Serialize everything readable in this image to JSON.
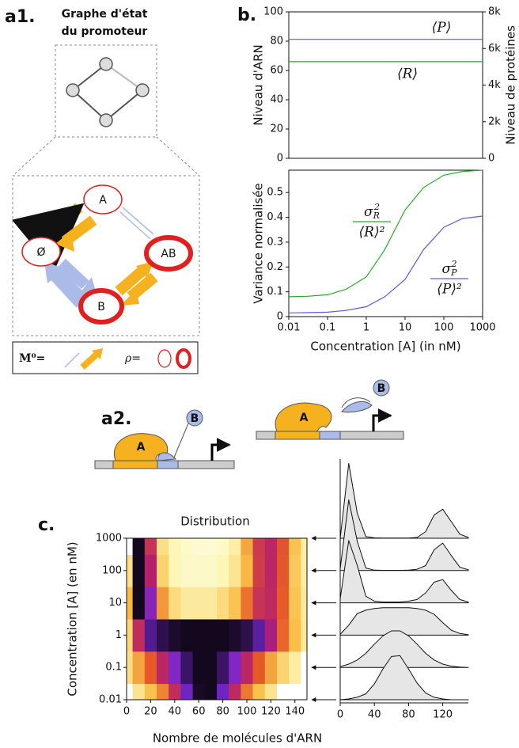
{
  "panel_labels": [
    "a1.",
    "b.",
    "a2.",
    "c."
  ],
  "promoter_graph": {
    "title": [
      "Graphe d'état",
      "du promoteur"
    ],
    "states": [
      "A",
      "Ø",
      "AB",
      "B"
    ],
    "legend": {
      "matrix": "M⁰=",
      "rho": "ρ="
    }
  },
  "binding_diagram": {
    "labels": [
      "A",
      "B",
      "A",
      "B"
    ]
  },
  "chart_data": [
    {
      "type": "line",
      "xscale": "log",
      "xlim": [
        0.01,
        1000
      ],
      "ylim": [
        0,
        100
      ],
      "yticks": [
        0,
        20,
        40,
        60,
        80,
        100
      ],
      "y2lim": [
        0,
        8000
      ],
      "y2ticks": [
        0,
        {
          "value": 2000,
          "label": "2k"
        },
        {
          "value": 4000,
          "label": "4k"
        },
        {
          "value": 6000,
          "label": "6k"
        },
        {
          "value": 8000,
          "label": "8k"
        }
      ],
      "ylabel": "Niveau d'ARN",
      "y2label": "Niveau de protéines",
      "x": [
        0.01,
        1000
      ],
      "series": [
        {
          "name": "⟨P⟩",
          "color": "#5a5ae0",
          "values": [
            6500,
            6500
          ],
          "axis": "y2"
        },
        {
          "name": "⟨R⟩",
          "color": "#2aaa2a",
          "values": [
            66,
            66
          ]
        }
      ]
    },
    {
      "type": "line",
      "xscale": "log",
      "xlim": [
        0.01,
        1000
      ],
      "ylim": [
        0,
        0.59
      ],
      "xticks": [
        0.01,
        0.1,
        1,
        10,
        100,
        1000
      ],
      "yticks": [
        0,
        0.1,
        0.2,
        0.3,
        0.4,
        0.5
      ],
      "xlabel": "Concentration [A] (in nM)",
      "ylabel": "Variance normalisée",
      "x": [
        0.01,
        0.03,
        0.1,
        0.3,
        1,
        3,
        10,
        30,
        100,
        300,
        1000
      ],
      "series": [
        {
          "label": {
            "numerator": "σ",
            "sub": "R",
            "sup": "2",
            "denominator": "⟨R⟩²"
          },
          "color": "#2aaa2a",
          "values": [
            0.08,
            0.082,
            0.088,
            0.11,
            0.16,
            0.27,
            0.43,
            0.52,
            0.57,
            0.585,
            0.59
          ]
        },
        {
          "label": {
            "numerator": "σ",
            "sub": "P",
            "sup": "2",
            "denominator": "⟨P⟩²"
          },
          "color": "#5a5ae0",
          "values": [
            0.015,
            0.016,
            0.018,
            0.025,
            0.04,
            0.08,
            0.15,
            0.27,
            0.36,
            0.395,
            0.405
          ]
        }
      ]
    },
    {
      "type": "heatmap",
      "title": "Distribution",
      "xlabel": "Nombre de molécules d'ARN",
      "ylabel": "Concentration [A] (en nM)",
      "yscale": "log",
      "xlim": [
        0,
        150
      ],
      "ylim": [
        0.01,
        1000
      ],
      "xticks": [
        0,
        20,
        40,
        60,
        80,
        100,
        120,
        140
      ],
      "yticks": [
        0.01,
        0.1,
        1,
        10,
        100,
        1000
      ],
      "x": [
        0,
        10,
        20,
        30,
        40,
        50,
        60,
        70,
        80,
        90,
        100,
        110,
        120,
        130,
        140,
        150
      ],
      "y": [
        0.01,
        0.1,
        1,
        10,
        100,
        1000
      ],
      "z": [
        [
          0,
          0.01,
          0.03,
          0.07,
          0.19,
          0.37,
          0.52,
          0.53,
          0.37,
          0.2,
          0.08,
          0.03,
          0.01,
          0,
          0,
          0
        ],
        [
          0.01,
          0.04,
          0.09,
          0.17,
          0.28,
          0.38,
          0.44,
          0.44,
          0.38,
          0.28,
          0.17,
          0.09,
          0.04,
          0.015,
          0.005,
          0
        ],
        [
          0.01,
          0.12,
          0.26,
          0.3,
          0.32,
          0.33,
          0.33,
          0.33,
          0.33,
          0.32,
          0.3,
          0.25,
          0.15,
          0.06,
          0.02,
          0.005
        ],
        [
          0.05,
          0.75,
          0.45,
          0.08,
          0.02,
          0.01,
          0.01,
          0.01,
          0.02,
          0.04,
          0.12,
          0.25,
          0.28,
          0.15,
          0.04,
          0.01
        ],
        [
          0.02,
          0.85,
          0.35,
          0.03,
          0.005,
          0.003,
          0.003,
          0.003,
          0.005,
          0.015,
          0.06,
          0.25,
          0.33,
          0.18,
          0.04,
          0.01
        ],
        [
          0,
          0.9,
          0.3,
          0.02,
          0.005,
          0.003,
          0.002,
          0.002,
          0.003,
          0.01,
          0.08,
          0.28,
          0.35,
          0.2,
          0.05,
          0.01
        ]
      ]
    },
    {
      "type": "ridgeline",
      "source": 2,
      "xlim": [
        0,
        150
      ],
      "xticks": [
        0,
        40,
        80,
        120
      ]
    }
  ]
}
